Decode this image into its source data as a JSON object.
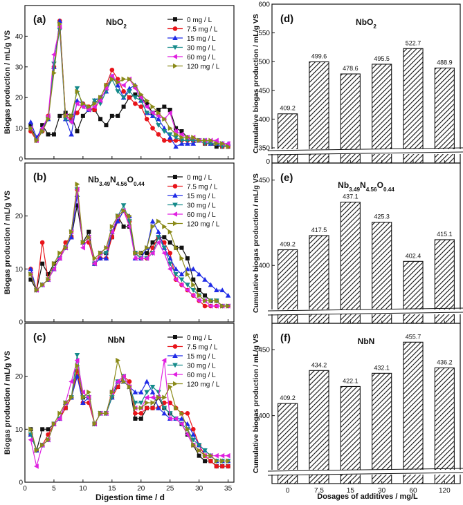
{
  "figure": {
    "line_xlabel": "Digestion time / d",
    "line_ylabel": "Biogas production / mL/g VS",
    "bar_xlabel": "Dosages of additives / mg/L",
    "bar_ylabel": "Cumulative biogas production / mL/g VS"
  },
  "chart_data": [
    {
      "type": "line",
      "panel": "(a)",
      "title": "NbO2",
      "xlim": [
        0,
        36
      ],
      "ylim": [
        0,
        50
      ],
      "xticks": [
        0,
        5,
        10,
        15,
        20,
        25,
        30,
        35
      ],
      "yticks": [
        0,
        10,
        20,
        30,
        40
      ],
      "x": [
        1,
        2,
        3,
        4,
        5,
        6,
        7,
        8,
        9,
        10,
        11,
        12,
        13,
        14,
        15,
        16,
        17,
        18,
        19,
        20,
        21,
        22,
        23,
        24,
        25,
        26,
        27,
        28,
        29,
        30,
        31,
        32,
        33,
        34,
        35
      ],
      "series": [
        {
          "name": "0 mg / L",
          "color": "#111111",
          "marker": "square",
          "values": [
            11,
            6,
            11,
            8,
            8,
            14,
            15,
            14,
            9,
            14,
            16,
            16,
            13,
            11,
            14,
            14,
            17,
            20,
            21,
            20,
            18,
            15,
            16,
            17,
            16,
            10,
            9,
            7,
            6,
            6,
            5,
            5,
            4,
            4,
            4
          ]
        },
        {
          "name": "7.5 mg / L",
          "color": "#e8141a",
          "marker": "circle",
          "values": [
            9,
            6,
            9,
            14,
            30,
            45,
            14,
            13,
            15,
            18,
            17,
            16,
            20,
            24,
            29,
            26,
            22,
            20,
            18,
            17,
            13,
            10,
            8,
            6,
            6,
            6,
            6,
            6,
            6,
            6,
            5,
            5,
            5,
            4,
            4
          ]
        },
        {
          "name": "15 mg / L",
          "color": "#1f2be6",
          "marker": "triangle-up",
          "values": [
            12,
            7,
            10,
            13,
            30,
            45,
            13,
            8,
            19,
            18,
            16,
            19,
            20,
            22,
            27,
            24,
            20,
            23,
            24,
            19,
            15,
            14,
            13,
            10,
            7,
            4,
            5,
            5,
            5,
            6,
            6,
            5,
            5,
            5,
            5
          ]
        },
        {
          "name": "30 mg / L",
          "color": "#148a8a",
          "marker": "triangle-down",
          "values": [
            10,
            6,
            9,
            13,
            31,
            42,
            13,
            12,
            23,
            17,
            16,
            19,
            18,
            22,
            26,
            22,
            20,
            22,
            20,
            19,
            15,
            15,
            11,
            9,
            8,
            7,
            6,
            6,
            6,
            6,
            5,
            5,
            5,
            4,
            4
          ]
        },
        {
          "name": "60 mg / L",
          "color": "#e020e0",
          "marker": "triangle-left",
          "values": [
            10,
            6,
            10,
            14,
            34,
            43,
            14,
            12,
            18,
            17,
            16,
            17,
            19,
            23,
            27,
            25,
            24,
            26,
            23,
            20,
            17,
            15,
            14,
            13,
            15,
            9,
            8,
            7,
            7,
            6,
            6,
            6,
            6,
            5,
            5
          ]
        },
        {
          "name": "120 mg / L",
          "color": "#8a8a18",
          "marker": "triangle-right",
          "values": [
            10,
            6,
            9,
            13,
            28,
            44,
            14,
            14,
            22,
            18,
            17,
            18,
            20,
            24,
            26,
            25,
            26,
            26,
            24,
            21,
            19,
            17,
            15,
            13,
            10,
            8,
            7,
            7,
            7,
            6,
            6,
            6,
            5,
            5,
            4
          ]
        }
      ]
    },
    {
      "type": "line",
      "panel": "(b)",
      "title": "Nb3.49N4.56O0.44",
      "xlim": [
        0,
        36
      ],
      "ylim": [
        0,
        30
      ],
      "xticks": [
        0,
        5,
        10,
        15,
        20,
        25,
        30,
        35
      ],
      "yticks": [
        0,
        10,
        20
      ],
      "x": [
        1,
        2,
        3,
        4,
        5,
        6,
        7,
        8,
        9,
        10,
        11,
        12,
        13,
        14,
        15,
        16,
        17,
        18,
        19,
        20,
        21,
        22,
        23,
        24,
        25,
        26,
        27,
        28,
        29,
        30,
        31,
        32,
        33,
        34,
        35
      ],
      "series": [
        {
          "name": "0 mg / L",
          "color": "#111111",
          "marker": "square",
          "values": [
            8,
            6,
            11,
            9,
            11,
            12,
            14,
            16,
            22,
            15,
            17,
            11,
            13,
            13,
            16,
            20,
            18,
            18,
            13,
            13,
            13,
            15,
            16,
            16,
            15,
            14,
            14,
            12,
            8,
            6,
            5,
            4,
            4,
            3,
            3
          ]
        },
        {
          "name": "7.5 mg / L",
          "color": "#e8141a",
          "marker": "circle",
          "values": [
            10,
            6,
            15,
            8,
            10,
            12,
            15,
            16,
            25,
            15,
            15,
            11,
            12,
            12,
            16,
            19,
            21,
            19,
            13,
            12,
            12,
            14,
            16,
            15,
            13,
            8,
            7,
            6,
            5,
            4,
            3,
            3,
            3,
            3,
            3
          ]
        },
        {
          "name": "15 mg / L",
          "color": "#1f2be6",
          "marker": "triangle-up",
          "values": [
            10,
            6,
            7,
            8,
            10,
            12,
            14,
            16,
            24,
            15,
            16,
            11,
            12,
            12,
            17,
            19,
            21,
            20,
            12,
            12,
            14,
            19,
            17,
            14,
            12,
            10,
            9,
            10,
            10,
            9,
            8,
            7,
            6,
            6,
            5
          ]
        },
        {
          "name": "30 mg / L",
          "color": "#148a8a",
          "marker": "triangle-down",
          "values": [
            9,
            6,
            7,
            8,
            10,
            12,
            14,
            17,
            25,
            15,
            16,
            11,
            13,
            13,
            17,
            20,
            22,
            19,
            13,
            12,
            12,
            13,
            16,
            14,
            11,
            9,
            8,
            7,
            6,
            5,
            4,
            4,
            4,
            3,
            3
          ]
        },
        {
          "name": "60 mg / L",
          "color": "#e020e0",
          "marker": "triangle-left",
          "values": [
            9,
            6,
            7,
            8,
            10,
            12,
            14,
            17,
            25,
            14,
            16,
            11,
            13,
            14,
            17,
            20,
            21,
            18,
            12,
            12,
            12,
            13,
            15,
            13,
            10,
            8,
            7,
            6,
            5,
            4,
            4,
            3,
            3,
            3,
            3
          ]
        },
        {
          "name": "120 mg / L",
          "color": "#8a8a18",
          "marker": "triangle-right",
          "values": [
            9,
            6,
            7,
            8,
            11,
            13,
            14,
            17,
            26,
            15,
            16,
            12,
            13,
            14,
            18,
            20,
            21,
            20,
            13,
            13,
            14,
            18,
            19,
            18,
            17,
            14,
            12,
            9,
            7,
            5,
            4,
            4,
            4,
            3,
            3
          ]
        }
      ]
    },
    {
      "type": "line",
      "panel": "(c)",
      "title": "NbN",
      "xlim": [
        0,
        36
      ],
      "ylim": [
        0,
        30
      ],
      "xticks": [
        0,
        5,
        10,
        15,
        20,
        25,
        30,
        35
      ],
      "yticks": [
        0,
        10,
        20
      ],
      "x": [
        1,
        2,
        3,
        4,
        5,
        6,
        7,
        8,
        9,
        10,
        11,
        12,
        13,
        14,
        15,
        16,
        17,
        18,
        19,
        20,
        21,
        22,
        23,
        24,
        25,
        26,
        27,
        28,
        29,
        30,
        31,
        32,
        33,
        34,
        35
      ],
      "series": [
        {
          "name": "0 mg / L",
          "color": "#111111",
          "marker": "square",
          "values": [
            10,
            6,
            10,
            10,
            11,
            12,
            14,
            16,
            20,
            16,
            16,
            11,
            13,
            13,
            17,
            18,
            20,
            18,
            12,
            12,
            14,
            14,
            16,
            14,
            13,
            12,
            11,
            9,
            7,
            5,
            4,
            4,
            3,
            3,
            3
          ]
        },
        {
          "name": "7.5 mg / L",
          "color": "#e8141a",
          "marker": "circle",
          "values": [
            9,
            6,
            7,
            9,
            11,
            12,
            14,
            16,
            21,
            15,
            15,
            11,
            13,
            13,
            16,
            18,
            20,
            19,
            13,
            13,
            14,
            14,
            14,
            15,
            15,
            14,
            13,
            13,
            10,
            7,
            5,
            4,
            3,
            3,
            3
          ]
        },
        {
          "name": "15 mg / L",
          "color": "#1f2be6",
          "marker": "triangle-up",
          "values": [
            9,
            6,
            7,
            8,
            11,
            12,
            15,
            16,
            20,
            15,
            16,
            11,
            13,
            13,
            16,
            19,
            19,
            18,
            17,
            17,
            19,
            17,
            14,
            13,
            12,
            12,
            12,
            11,
            9,
            7,
            6,
            5,
            4,
            4,
            4
          ]
        },
        {
          "name": "30 mg / L",
          "color": "#148a8a",
          "marker": "triangle-down",
          "values": [
            9,
            6,
            7,
            8,
            11,
            12,
            15,
            16,
            24,
            16,
            16,
            11,
            13,
            13,
            16,
            19,
            20,
            18,
            15,
            15,
            17,
            18,
            17,
            14,
            13,
            12,
            11,
            10,
            8,
            7,
            6,
            5,
            4,
            4,
            4
          ]
        },
        {
          "name": "60 mg / L",
          "color": "#e020e0",
          "marker": "triangle-left",
          "values": [
            8,
            3,
            7,
            8,
            11,
            12,
            15,
            19,
            23,
            17,
            16,
            11,
            13,
            13,
            17,
            19,
            20,
            18,
            14,
            14,
            16,
            16,
            16,
            23,
            12,
            12,
            11,
            9,
            7,
            6,
            5,
            5,
            5,
            5,
            5
          ]
        },
        {
          "name": "120 mg / L",
          "color": "#8a8a18",
          "marker": "triangle-right",
          "values": [
            10,
            6,
            7,
            8,
            11,
            13,
            15,
            16,
            22,
            16,
            17,
            11,
            13,
            13,
            17,
            23,
            19,
            18,
            14,
            14,
            15,
            15,
            16,
            16,
            18,
            14,
            13,
            10,
            7,
            6,
            5,
            5,
            4,
            4,
            4
          ]
        }
      ]
    },
    {
      "type": "bar",
      "panel": "(d)",
      "title": "NbO2",
      "categories": [
        "0",
        "7.5",
        "15",
        "30",
        "60",
        "120"
      ],
      "values": [
        409.2,
        499.6,
        478.6,
        495.5,
        522.7,
        488.9
      ],
      "value_labels": [
        "409.2",
        "499.6",
        "478.6",
        "495.5",
        "522.7",
        "488.9"
      ],
      "ylim": [
        350,
        600
      ],
      "axis_break": [
        0,
        350
      ],
      "yticks": [
        350,
        400,
        450,
        500,
        550,
        600
      ],
      "bottom_tick": "0"
    },
    {
      "type": "bar",
      "panel": "(e)",
      "title": "Nb3.49N4.56O0.44",
      "categories": [
        "0",
        "7.5",
        "15",
        "30",
        "60",
        "120"
      ],
      "values": [
        409.2,
        417.5,
        437.1,
        425.3,
        402.4,
        415.1
      ],
      "value_labels": [
        "409.2",
        "417.5",
        "437.1",
        "425.3",
        "402.4",
        "415.1"
      ],
      "ylim": [
        375,
        460
      ],
      "axis_break": [
        0,
        375
      ],
      "yticks": [
        400,
        450
      ],
      "bottom_tick": ""
    },
    {
      "type": "bar",
      "panel": "(f)",
      "title": "NbN",
      "categories": [
        "0",
        "7.5",
        "15",
        "30",
        "60",
        "120"
      ],
      "values": [
        409.2,
        434.2,
        422.1,
        432.1,
        455.7,
        436.2
      ],
      "value_labels": [
        "409.2",
        "434.2",
        "422.1",
        "432.1",
        "455.7",
        "436.2"
      ],
      "ylim": [
        360,
        470
      ],
      "axis_break": [
        0,
        360
      ],
      "yticks": [
        400,
        450
      ],
      "bottom_tick": ""
    }
  ]
}
